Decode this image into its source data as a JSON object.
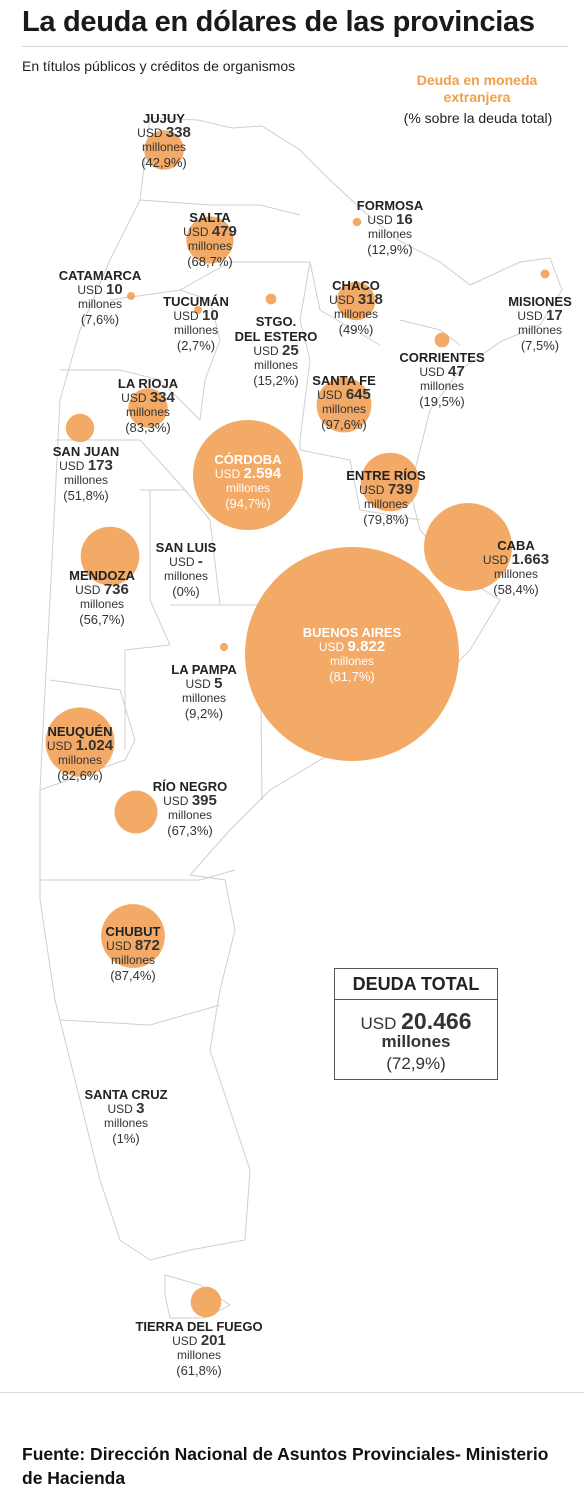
{
  "title": "La deuda en dólares de las provincias",
  "subtitle": "En títulos públicos y créditos de organismos",
  "legend": {
    "title": "Deuda en moneda extranjera",
    "subtitle": "(% sobre la deuda total)",
    "bubble_color": "#f2a359"
  },
  "currency": "USD",
  "unit": "millones",
  "provinces": [
    {
      "id": "jujuy",
      "name": "JUJUY",
      "amount": "338",
      "pct": "(42,9%)",
      "value": 338
    },
    {
      "id": "salta",
      "name": "SALTA",
      "amount": "479",
      "pct": "(68,7%)",
      "value": 479
    },
    {
      "id": "formosa",
      "name": "FORMOSA",
      "amount": "16",
      "pct": "(12,9%)",
      "value": 16
    },
    {
      "id": "catamarca",
      "name": "CATAMARCA",
      "amount": "10",
      "pct": "(7,6%)",
      "value": 10
    },
    {
      "id": "tucuman",
      "name": "TUCUMÁN",
      "amount": "10",
      "pct": "(2,7%)",
      "value": 10
    },
    {
      "id": "stgo",
      "name": "STGO.",
      "name2": "DEL ESTERO",
      "amount": "25",
      "pct": "(15,2%)",
      "value": 25
    },
    {
      "id": "chaco",
      "name": "CHACO",
      "amount": "318",
      "pct": "(49%)",
      "value": 318
    },
    {
      "id": "misiones",
      "name": "MISIONES",
      "amount": "17",
      "pct": "(7,5%)",
      "value": 17
    },
    {
      "id": "corrientes",
      "name": "CORRIENTES",
      "amount": "47",
      "pct": "(19,5%)",
      "value": 47
    },
    {
      "id": "larioja",
      "name": "LA RIOJA",
      "amount": "334",
      "pct": "(83,3%)",
      "value": 334
    },
    {
      "id": "santafe",
      "name": "SANTA FE",
      "amount": "645",
      "pct": "(97,6%)",
      "value": 645
    },
    {
      "id": "sanjuan",
      "name": "SAN JUAN",
      "amount": "173",
      "pct": "(51,8%)",
      "value": 173
    },
    {
      "id": "cordoba",
      "name": "CÓRDOBA",
      "amount": "2.594",
      "pct": "(94,7%)",
      "value": 2594
    },
    {
      "id": "entrerios",
      "name": "ENTRE RÍOS",
      "amount": "739",
      "pct": "(79,8%)",
      "value": 739
    },
    {
      "id": "caba",
      "name": "CABA",
      "amount": "1.663",
      "pct": "(58,4%)",
      "value": 1663
    },
    {
      "id": "sanluis",
      "name": "SAN LUIS",
      "amount": "-",
      "pct": "(0%)",
      "value": 0
    },
    {
      "id": "mendoza",
      "name": "MENDOZA",
      "amount": "736",
      "pct": "(56,7%)",
      "value": 736
    },
    {
      "id": "buenosaires",
      "name": "BUENOS AIRES",
      "amount": "9.822",
      "pct": "(81,7%)",
      "value": 9822
    },
    {
      "id": "lapampa",
      "name": "LA PAMPA",
      "amount": "5",
      "pct": "(9,2%)",
      "value": 5
    },
    {
      "id": "neuquen",
      "name": "NEUQUÉN",
      "amount": "1.024",
      "pct": "(82,6%)",
      "value": 1024
    },
    {
      "id": "rionegro",
      "name": "RÍO NEGRO",
      "amount": "395",
      "pct": "(67,3%)",
      "value": 395
    },
    {
      "id": "chubut",
      "name": "CHUBUT",
      "amount": "872",
      "pct": "(87,4%)",
      "value": 872
    },
    {
      "id": "santacruz",
      "name": "SANTA CRUZ",
      "amount": "3",
      "pct": "(1%)",
      "value": 3
    },
    {
      "id": "tierradelfuego",
      "name": "TIERRA DEL FUEGO",
      "amount": "201",
      "pct": "(61,8%)",
      "value": 201
    }
  ],
  "total": {
    "heading": "DEUDA TOTAL",
    "amount": "20.466",
    "unit": "millones",
    "pct": "(72,9%)"
  },
  "source": "Fuente: Dirección Nacional de Asuntos Provinciales- Ministerio de Hacienda"
}
